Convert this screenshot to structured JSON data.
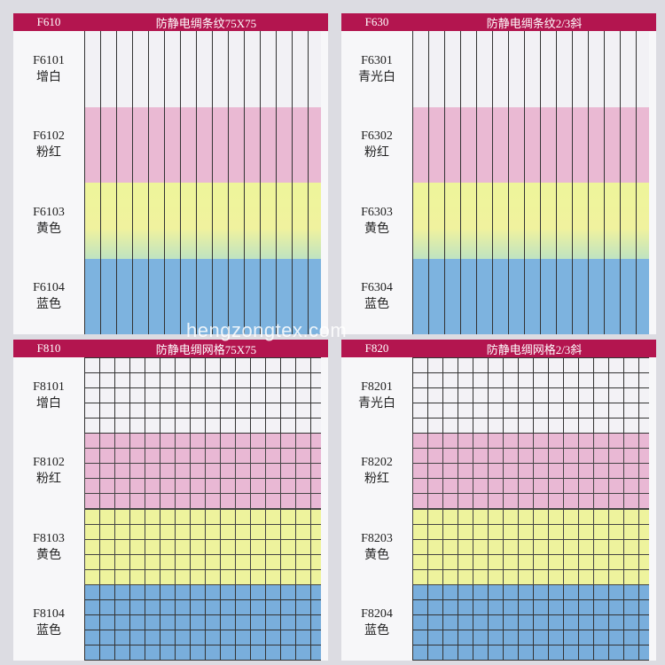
{
  "panels": [
    {
      "code": "F610",
      "title": "防静电绸条纹75X75",
      "rows": [
        {
          "code": "F6101",
          "name": "增白"
        },
        {
          "code": "F6102",
          "name": "粉红"
        },
        {
          "code": "F6103",
          "name": "黄色"
        },
        {
          "code": "F6104",
          "name": "蓝色"
        }
      ]
    },
    {
      "code": "F630",
      "title": "防静电绸条纹2/3斜",
      "rows": [
        {
          "code": "F6301",
          "name": "青光白"
        },
        {
          "code": "F6302",
          "name": "粉红"
        },
        {
          "code": "F6303",
          "name": "黄色"
        },
        {
          "code": "F6304",
          "name": "蓝色"
        }
      ]
    },
    {
      "code": "F810",
      "title": "防静电绸网格75X75",
      "rows": [
        {
          "code": "F8101",
          "name": "增白"
        },
        {
          "code": "F8102",
          "name": "粉红"
        },
        {
          "code": "F8103",
          "name": "黄色"
        },
        {
          "code": "F8104",
          "name": "蓝色"
        }
      ]
    },
    {
      "code": "F820",
      "title": "防静电绸网格2/3斜",
      "rows": [
        {
          "code": "F8201",
          "name": "青光白"
        },
        {
          "code": "F8202",
          "name": "粉红"
        },
        {
          "code": "F8203",
          "name": "黄色"
        },
        {
          "code": "F8204",
          "name": "蓝色"
        }
      ]
    }
  ],
  "watermark": "hengzongtex.com"
}
